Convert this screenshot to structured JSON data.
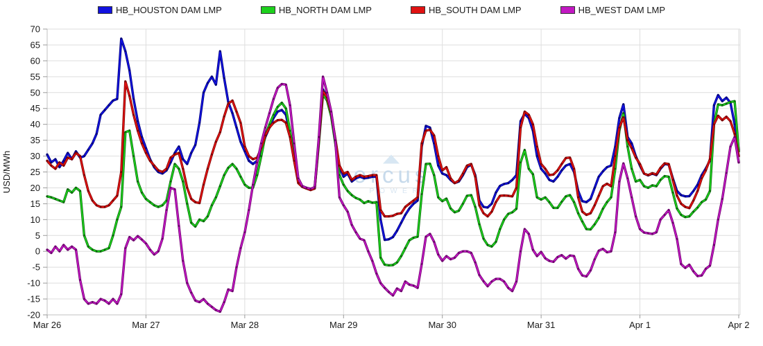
{
  "watermark": {
    "brand": "orcus",
    "sub": "POWER",
    "triangle_color": "#d8e7f3",
    "brand_color": "#c7daeb",
    "sub_color": "#d9e6f2"
  },
  "colors": {
    "background": "#ffffff",
    "grid": "#dedede",
    "axis": "#c0c0c0",
    "tick": "#9b9b9b",
    "tick_label": "#1a1a1a"
  },
  "chart_data": {
    "type": "line",
    "title": "",
    "ylabel": "USD/MWh",
    "xlabel": "",
    "ylim": [
      -20,
      70
    ],
    "ytick_step": 5,
    "grid": true,
    "legend_position": "top",
    "points_per_day": 24,
    "x_labels": [
      "Mar 26",
      "Mar 27",
      "Mar 28",
      "Mar 29",
      "Mar 30",
      "Mar 31",
      "Apr 1",
      "Apr 2"
    ],
    "series": [
      {
        "name": "HB_HOUSTON DAM LMP",
        "color": "#1212e0",
        "edge": "#00007a",
        "values": [
          30.5,
          28,
          29,
          26.5,
          28.5,
          31,
          29,
          31.5,
          29.5,
          30,
          32,
          34,
          37,
          43,
          44.5,
          46,
          47.5,
          48,
          67,
          63,
          57,
          48,
          41,
          36,
          32.5,
          29,
          26.5,
          25,
          24.5,
          25.5,
          28,
          31,
          33,
          29,
          27.5,
          31,
          33.5,
          40.5,
          50,
          53,
          55,
          52.5,
          63,
          54.5,
          47,
          43.5,
          39,
          34.5,
          31.5,
          28.5,
          27.5,
          28.5,
          32,
          36,
          39,
          42,
          44,
          44.5,
          43,
          37,
          29,
          22,
          20.5,
          20,
          19.5,
          20,
          35,
          51,
          48.5,
          43,
          35,
          26.5,
          23.5,
          24.5,
          22,
          23,
          23.5,
          23,
          23.2,
          23.5,
          23.5,
          10,
          3.6,
          3.8,
          4.5,
          6.5,
          9,
          11.5,
          13.5,
          15,
          16,
          33,
          39.5,
          39,
          34,
          27,
          24.5,
          24,
          22.5,
          21.5,
          22,
          24,
          26.5,
          27.3,
          24,
          16,
          14,
          13.8,
          15,
          18.5,
          20.6,
          21.2,
          21.5,
          22.5,
          24,
          41,
          43.3,
          42,
          38,
          30,
          26,
          24.5,
          22.5,
          22,
          23.5,
          25.5,
          27,
          27.5,
          25,
          19,
          15.8,
          15.5,
          16.5,
          20,
          23.5,
          25.2,
          26.5,
          27,
          33,
          42,
          46.3,
          36,
          34,
          30,
          27,
          24.5,
          23.9,
          24.5,
          24,
          26,
          27.5,
          27.3,
          23,
          19,
          17.7,
          17.3,
          17.4,
          19,
          21,
          24,
          26.1,
          28.6,
          46,
          49.2,
          47.3,
          48.4,
          46.8,
          40,
          32
        ]
      },
      {
        "name": "HB_NORTH DAM LMP",
        "color": "#1dd11d",
        "edge": "#0a660a",
        "values": [
          17.3,
          17,
          16.5,
          16,
          15.5,
          19.5,
          18.5,
          20,
          19,
          5,
          1.5,
          0.5,
          0,
          0,
          0.5,
          1,
          5,
          10,
          14,
          37.5,
          38,
          30,
          22,
          18.5,
          16.5,
          15.5,
          14.5,
          14,
          14.5,
          16,
          22,
          27.5,
          26,
          22,
          15,
          9,
          7.8,
          10,
          9.5,
          11,
          14.5,
          17,
          20.5,
          24,
          26.3,
          27.5,
          26,
          23.5,
          21,
          20,
          20,
          24,
          30,
          36.5,
          40,
          43,
          45.5,
          46.8,
          45,
          38,
          30,
          22,
          20.3,
          19.8,
          19.5,
          19.8,
          34,
          49.4,
          47.5,
          42.5,
          34,
          24,
          21,
          19,
          17.7,
          16.8,
          16.3,
          15.2,
          15.8,
          15.3,
          15.5,
          -2,
          -4.2,
          -4.4,
          -4.3,
          -3.5,
          -1.5,
          1,
          3.5,
          4.3,
          4.6,
          18,
          27.5,
          27.6,
          24,
          17,
          15.8,
          16.6,
          13.5,
          12.3,
          12.8,
          15,
          17.5,
          17.7,
          14,
          8.5,
          4,
          2,
          1.5,
          3,
          7,
          10,
          11.8,
          12.3,
          13.4,
          28,
          31.9,
          26,
          24.3,
          17,
          16.3,
          17,
          15.5,
          13.7,
          13.7,
          15.6,
          17.3,
          17.7,
          15.5,
          12,
          9.4,
          7,
          6.9,
          8.5,
          10.5,
          13.4,
          15.5,
          17,
          26,
          38,
          43.5,
          33,
          26,
          22,
          22.5,
          20.5,
          20,
          20.8,
          20.5,
          22.5,
          23.7,
          23.5,
          18.5,
          13.5,
          11.5,
          10.8,
          11,
          12.5,
          13.8,
          15.5,
          16.3,
          19,
          40,
          46.3,
          46,
          46.5,
          47,
          47.3,
          31.5
        ]
      },
      {
        "name": "HB_SOUTH DAM LMP",
        "color": "#e01212",
        "edge": "#7a0000",
        "values": [
          28.5,
          27,
          26,
          28,
          27,
          29.5,
          29,
          31,
          30,
          24,
          19,
          16,
          14.5,
          14,
          14,
          14.5,
          16,
          17.5,
          25,
          53.5,
          49,
          43,
          38,
          34,
          31,
          28.5,
          27,
          25.5,
          25,
          26,
          29.5,
          30.5,
          31,
          26,
          20,
          16.5,
          15.5,
          15.2,
          21,
          26,
          30.5,
          34.5,
          37.5,
          42.5,
          46.5,
          47.5,
          44,
          40.5,
          33,
          30,
          29,
          29.5,
          32.5,
          36.5,
          39,
          40.5,
          41.3,
          41.4,
          40.5,
          36,
          28.5,
          21.5,
          20.3,
          19.8,
          19.3,
          19.8,
          35,
          50.5,
          48.5,
          43.5,
          35.5,
          27,
          24.5,
          25,
          22.5,
          23.5,
          24,
          23.5,
          23.7,
          24,
          24,
          13,
          11,
          11,
          11.2,
          11.8,
          12,
          14,
          15,
          16,
          17,
          34,
          38,
          38.3,
          36.5,
          30,
          25.5,
          26.5,
          23,
          21.5,
          22.3,
          24.5,
          27,
          27.5,
          23.5,
          14.5,
          12,
          11,
          12.5,
          15.5,
          17.5,
          17.6,
          17.5,
          17.3,
          20,
          39,
          44,
          43,
          40,
          33,
          27.5,
          26,
          24,
          24.2,
          25.5,
          27.5,
          29.4,
          29.5,
          26,
          17,
          12.5,
          11.5,
          12,
          14.5,
          17.5,
          20.5,
          21.3,
          20.5,
          30,
          39,
          42.2,
          35,
          32.5,
          29.5,
          27.5,
          24.5,
          24,
          24.6,
          24.2,
          26.3,
          27.7,
          27.5,
          22.5,
          17.5,
          15,
          14,
          13.6,
          16,
          19,
          23,
          25.5,
          29,
          40,
          42.7,
          41.3,
          42.4,
          41,
          37,
          30
        ]
      },
      {
        "name": "HB_WEST DAM LMP",
        "color": "#c218c2",
        "edge": "#6b006b",
        "values": [
          0.5,
          -0.5,
          1.5,
          0,
          2,
          0.5,
          1.5,
          0.5,
          -9,
          -15,
          -16.5,
          -16,
          -16.5,
          -15,
          -15.5,
          -16.5,
          -15,
          -16.5,
          -13.5,
          1,
          4.5,
          3.5,
          4.8,
          3.7,
          2.5,
          0.5,
          -1,
          0,
          4,
          13,
          20,
          19.5,
          8,
          -3,
          -10,
          -13,
          -15.5,
          -16,
          -15,
          -16.5,
          -17.5,
          -18.5,
          -19,
          -16,
          -12,
          -12.5,
          -5,
          1,
          6,
          13,
          21,
          28,
          34,
          39,
          43.5,
          48,
          51.5,
          52.7,
          52.5,
          46,
          34,
          23,
          20.5,
          20,
          19.7,
          20.2,
          36,
          55,
          50,
          44,
          35,
          17,
          14.5,
          12.5,
          8.3,
          6,
          4,
          3.5,
          0,
          -3,
          -7,
          -10,
          -11.5,
          -12.8,
          -13.9,
          -11.7,
          -12.5,
          -9.5,
          -10.5,
          -10.8,
          -11.5,
          -4,
          4.6,
          5.5,
          3,
          -1,
          -3,
          -1.5,
          -2.5,
          -2,
          -0.5,
          0,
          0,
          -0.5,
          -3.5,
          -7.5,
          -9.4,
          -11,
          -9.5,
          -8.7,
          -8.7,
          -9.5,
          -11.5,
          -12.5,
          -9.5,
          0,
          7,
          5.5,
          0.5,
          -1.5,
          -0.2,
          -2.2,
          -3,
          -3.3,
          -1.8,
          -1.2,
          -2.3,
          -1.3,
          -1.5,
          -5.5,
          -7.6,
          -7.9,
          -6,
          -2.5,
          0.2,
          0.8,
          -0.3,
          0,
          6,
          22,
          27.7,
          23,
          17,
          11,
          7,
          5.9,
          5.7,
          5.5,
          6,
          10,
          11.5,
          13,
          9,
          3.9,
          -4,
          -5.2,
          -4.2,
          -6.3,
          -7.8,
          -7.6,
          -5.5,
          -4.5,
          2,
          10,
          16.5,
          24.7,
          33,
          36,
          28
        ]
      }
    ]
  }
}
